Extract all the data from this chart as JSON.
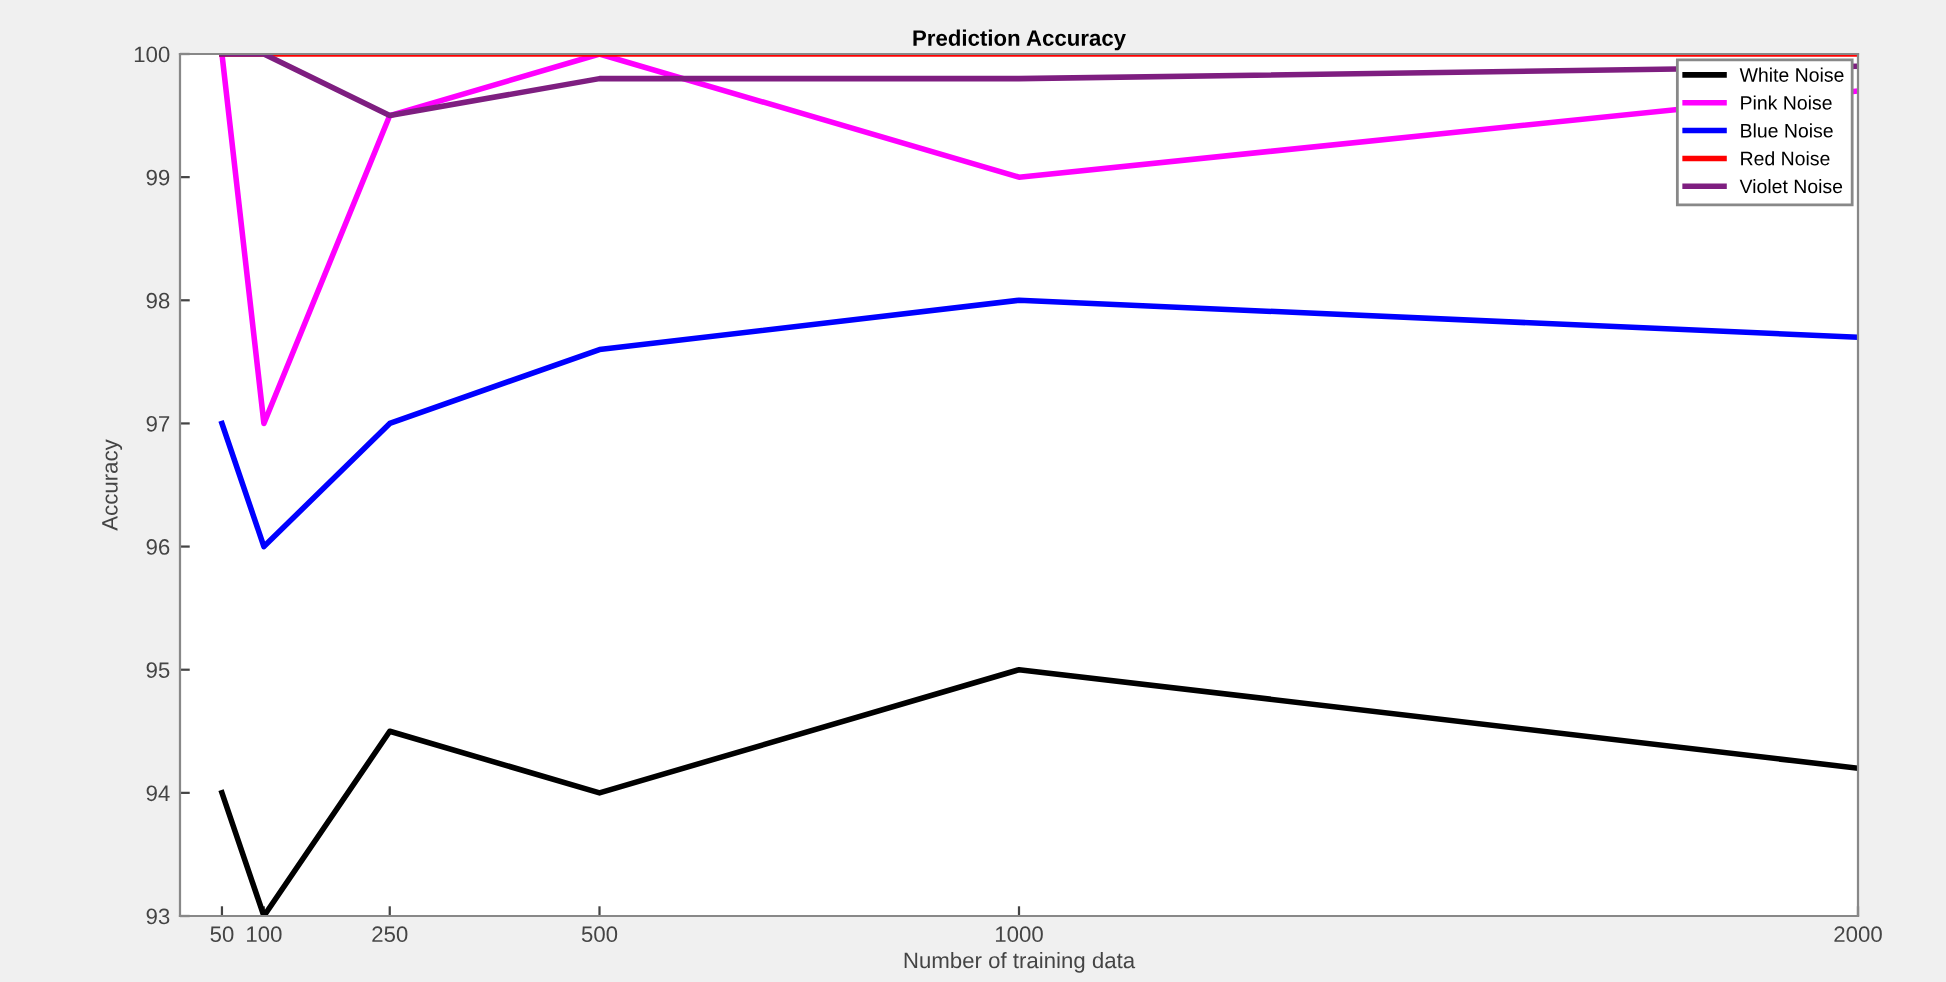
{
  "chart_data": {
    "type": "line",
    "title": "Prediction Accuracy",
    "xlabel": "Number of training data",
    "ylabel": "Accuracy",
    "x": [
      50,
      100,
      250,
      500,
      1000,
      2000
    ],
    "series": [
      {
        "name": "White Noise",
        "color": "#000000",
        "values": [
          94,
          93,
          94.5,
          94,
          95,
          94.2
        ]
      },
      {
        "name": "Pink Noise",
        "color": "#ff00ff",
        "values": [
          100,
          97,
          99.5,
          100,
          99,
          99.7
        ]
      },
      {
        "name": "Blue Noise",
        "color": "#0000ff",
        "values": [
          97,
          96,
          97,
          97.6,
          98,
          97.7
        ]
      },
      {
        "name": "Red Noise",
        "color": "#ff0000",
        "values": [
          100,
          100,
          100,
          100,
          100,
          100
        ]
      },
      {
        "name": "Violet Noise",
        "color": "#7e1e80",
        "values": [
          100,
          100,
          99.5,
          99.8,
          99.8,
          99.9
        ]
      }
    ],
    "xlim": [
      0,
      2000
    ],
    "xticks": [
      50,
      100,
      250,
      500,
      1000,
      2000
    ],
    "ylim": [
      93,
      100
    ],
    "yticks": [
      93,
      94,
      95,
      96,
      97,
      98,
      99,
      100
    ],
    "grid": false,
    "legend": "top right",
    "marker": "none",
    "line_style": "solid"
  }
}
